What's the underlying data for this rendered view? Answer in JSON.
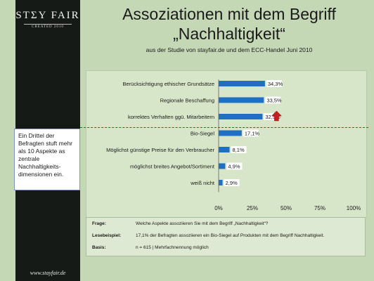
{
  "brand": {
    "logo": "STΣY FAIR",
    "logo_sub": "CREATED 2010",
    "website": "www.stayfair.de"
  },
  "title": {
    "line1": "Assoziationen mit dem Begriff",
    "line2": "„Nachhaltigkeit“",
    "subtitle": "aus der Studie von stayfair.de und dem ECC-Handel Juni 2010"
  },
  "callout": "Ein Drittel der Befragten stuft mehr als 10 Aspekte as zentrale Nachhaltigkeits-dimensionen ein.",
  "footer": {
    "frage_label": "Frage:",
    "frage_text": "Welche Aspekte assoziieren Sie mit dem Begriff „Nachhaltigkeit“?",
    "lesebeispiel_label": "Lesebeispiel:",
    "lesebeispiel_text": "17,1% der Befragten assoziieren ein Bio-Siegel auf Produkten mit dem Begriff Nachhaltigkeit.",
    "basis_label": "Basis:",
    "basis_text": "n = 615 | Mehrfachnennung möglich"
  },
  "colors": {
    "bar": "#1f6fc4",
    "arrow": "#c81e1e",
    "dashed_line": "#c0281f"
  },
  "chart_data": {
    "type": "bar",
    "orientation": "horizontal",
    "categories": [
      "Berücksichtigung ethischer Grundsätze",
      "Regionale Beschaffung",
      "korrektes Verhalten ggü. Mitarbeitern",
      "Bio-Siegel",
      "Möglichst günstige Preise für den Verbraucher",
      "möglichst breites Angebot/Sortiment",
      "weiß nicht"
    ],
    "values": [
      34.3,
      33.5,
      32.5,
      17.1,
      8.1,
      4.9,
      2.9
    ],
    "value_labels": [
      "34,3%",
      "33,5%",
      "32,5%",
      "17,1%",
      "8,1%",
      "4,9%",
      "2,9%"
    ],
    "xlim": [
      0,
      100
    ],
    "xticks": [
      "0%",
      "25%",
      "50%",
      "75%",
      "100%"
    ],
    "grid": false
  }
}
